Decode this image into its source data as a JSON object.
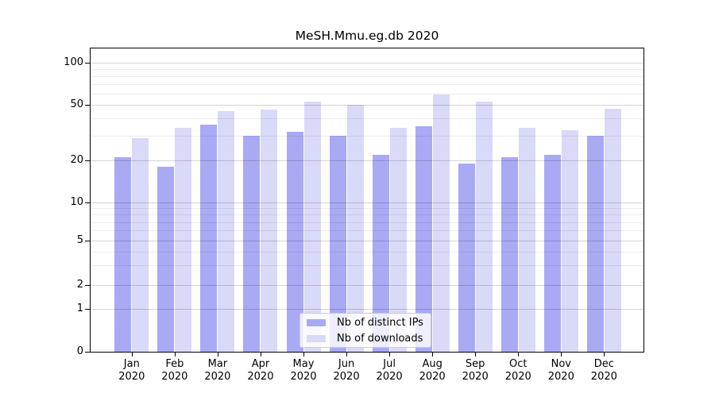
{
  "chart_data": {
    "type": "bar",
    "title": "MeSH.Mmu.eg.db 2020",
    "xlabel": "",
    "ylabel": "",
    "scale": "log-like (symlog: linear 0-1, logarithmic above)",
    "ylim": [
      0,
      128
    ],
    "y_ticks": [
      0,
      1,
      2,
      5,
      10,
      20,
      50,
      100
    ],
    "minor_gridlines": [
      3,
      4,
      6,
      7,
      8,
      9,
      30,
      40,
      60,
      70,
      80,
      90
    ],
    "grid": true,
    "legend_position": "lower center inside plot",
    "categories": [
      "Jan 2020",
      "Feb 2020",
      "Mar 2020",
      "Apr 2020",
      "May 2020",
      "Jun 2020",
      "Jul 2020",
      "Aug 2020",
      "Sep 2020",
      "Oct 2020",
      "Nov 2020",
      "Dec 2020"
    ],
    "series": [
      {
        "name": "Nb of distinct IPs",
        "color": "#a9a9f4",
        "values": [
          21,
          18,
          36,
          30,
          32,
          30,
          22,
          35,
          19,
          21,
          22,
          30
        ]
      },
      {
        "name": "Nb of downloads",
        "color": "#d9d9f8",
        "values": [
          29,
          34,
          45,
          46,
          53,
          50,
          34,
          59,
          53,
          34,
          33,
          47
        ]
      }
    ],
    "colors": {
      "grid_major": "#d4d4d4",
      "grid_minor": "#ededed",
      "axis": "#000000",
      "background": "#ffffff"
    }
  }
}
